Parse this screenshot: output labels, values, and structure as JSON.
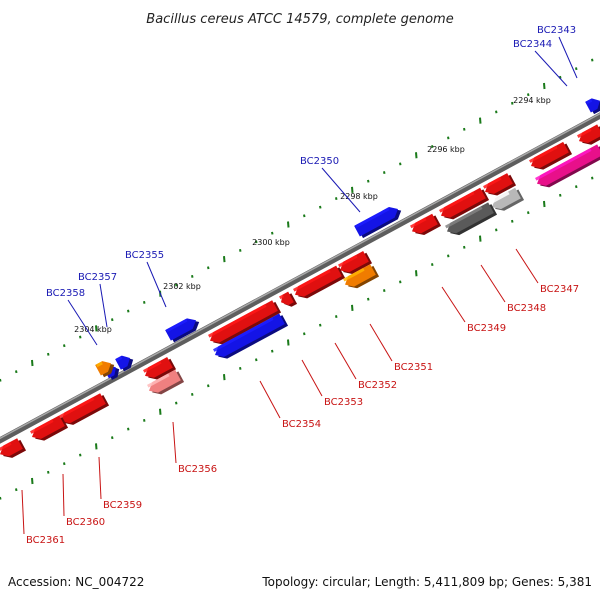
{
  "title": "Bacillus cereus ATCC 14579, complete genome",
  "footer": {
    "accession": "Accession: NC_004722",
    "topology": "Topology: circular; Length: 5,411,809 bp; Genes: 5,381"
  },
  "colors": {
    "backbone": "#7a7a7a",
    "forward_label": "#1a1ab4",
    "reverse_label": "#c81414",
    "tick": "#1a7a1a"
  },
  "scale_labels": [
    "2294 kbp",
    "2296 kbp",
    "2298 kbp",
    "2300 kbp",
    "2302 kbp",
    "2304 kbp"
  ],
  "genes": [
    {
      "id": "BC2343",
      "strand": "forward"
    },
    {
      "id": "BC2344",
      "strand": "forward"
    },
    {
      "id": "BC2350",
      "strand": "forward"
    },
    {
      "id": "BC2355",
      "strand": "forward"
    },
    {
      "id": "BC2357",
      "strand": "forward"
    },
    {
      "id": "BC2358",
      "strand": "forward"
    },
    {
      "id": "BC2347",
      "strand": "reverse"
    },
    {
      "id": "BC2348",
      "strand": "reverse"
    },
    {
      "id": "BC2349",
      "strand": "reverse"
    },
    {
      "id": "BC2351",
      "strand": "reverse"
    },
    {
      "id": "BC2352",
      "strand": "reverse"
    },
    {
      "id": "BC2353",
      "strand": "reverse"
    },
    {
      "id": "BC2354",
      "strand": "reverse"
    },
    {
      "id": "BC2356",
      "strand": "reverse"
    },
    {
      "id": "BC2359",
      "strand": "reverse"
    },
    {
      "id": "BC2360",
      "strand": "reverse"
    },
    {
      "id": "BC2361",
      "strand": "reverse"
    }
  ]
}
